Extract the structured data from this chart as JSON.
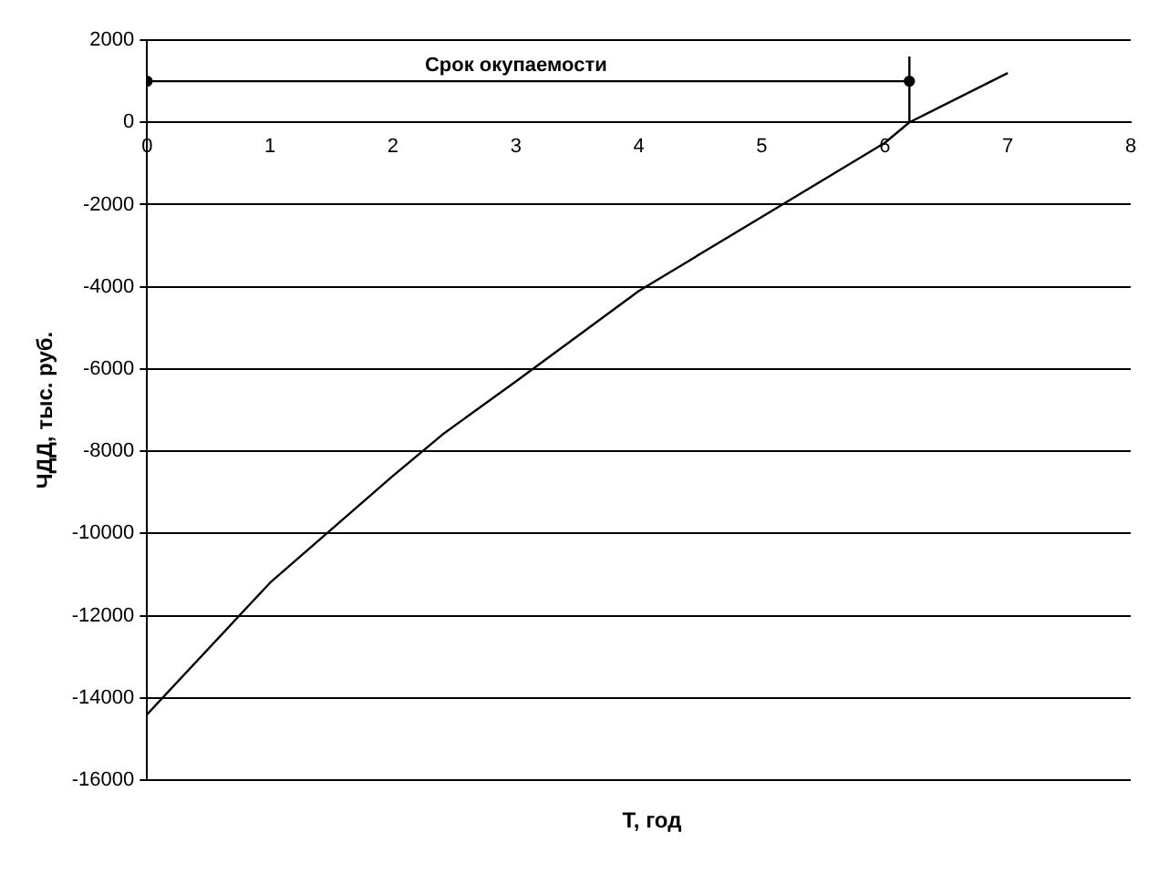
{
  "chart_data": {
    "type": "line",
    "xlabel": "Т, год",
    "ylabel": "ЧДД, тыс. руб.",
    "xlim": [
      0,
      8
    ],
    "xticks": [
      0,
      1,
      2,
      3,
      4,
      5,
      6,
      7,
      8
    ],
    "ylim": [
      -16000,
      2000
    ],
    "yticks": [
      -16000,
      -14000,
      -12000,
      -10000,
      -8000,
      -6000,
      -4000,
      -2000,
      0,
      2000
    ],
    "grid": "y",
    "legend": false,
    "series": [
      {
        "x": [
          0,
          1,
          2,
          2.4,
          3,
          4,
          4.5,
          5,
          6,
          6.2,
          7
        ],
        "values": [
          -14400,
          -11200,
          -8600,
          -7600,
          -6300,
          -4100,
          -3200,
          -2300,
          -500,
          0,
          1200
        ],
        "color": "#000000",
        "marker": "none"
      },
      {
        "x": [
          0,
          6.2
        ],
        "values": [
          1000,
          1000
        ],
        "color": "#000000",
        "marker": "circle"
      },
      {
        "x": [
          6.2,
          6.2
        ],
        "values": [
          0,
          1600
        ],
        "color": "#000000",
        "marker": "none"
      }
    ],
    "annotations": [
      {
        "text": "Срок окупаемости",
        "x": 3,
        "y": 1000
      }
    ]
  }
}
